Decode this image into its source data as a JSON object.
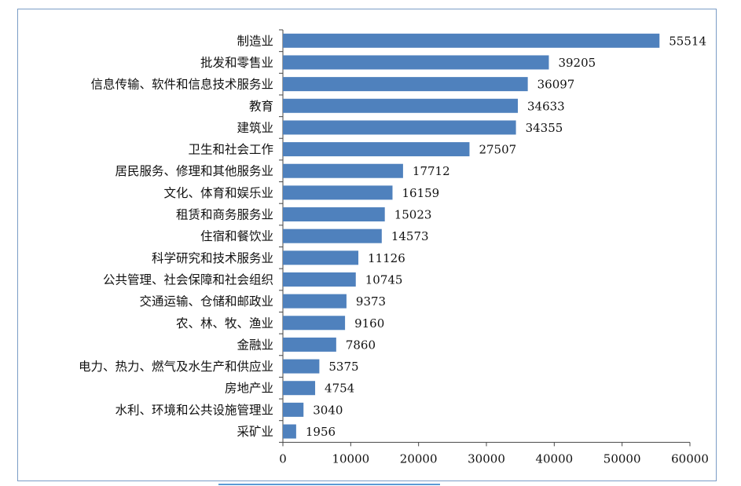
{
  "chart_data": {
    "type": "bar",
    "orientation": "horizontal",
    "categories": [
      "制造业",
      "批发和零售业",
      "信息传输、软件和信息技术服务业",
      "教育",
      "建筑业",
      "卫生和社会工作",
      "居民服务、修理和其他服务业",
      "文化、体育和娱乐业",
      "租赁和商务服务业",
      "住宿和餐饮业",
      "科学研究和技术服务业",
      "公共管理、社会保障和社会组织",
      "交通运输、仓储和邮政业",
      "农、林、牧、渔业",
      "金融业",
      "电力、热力、燃气及水生产和供应业",
      "房地产业",
      "水利、环境和公共设施管理业",
      "采矿业"
    ],
    "values": [
      55514,
      39205,
      36097,
      34633,
      34355,
      27507,
      17712,
      16159,
      15023,
      14573,
      11126,
      10745,
      9373,
      9160,
      7860,
      5375,
      4754,
      3040,
      1956
    ],
    "xlim": [
      0,
      60000
    ],
    "xticks": [
      0,
      10000,
      20000,
      30000,
      40000,
      50000,
      60000
    ],
    "title": "",
    "xlabel": "",
    "ylabel": "",
    "grid": false,
    "legend": "none",
    "bar_color": "#4f81bd"
  }
}
